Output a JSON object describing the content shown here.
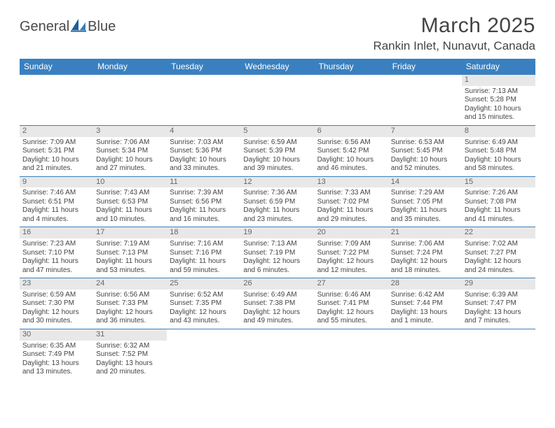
{
  "logo": {
    "word1": "General",
    "word2": "Blue"
  },
  "title": "March 2025",
  "location": "Rankin Inlet, Nunavut, Canada",
  "colors": {
    "header_bg": "#3a80c0",
    "header_text": "#ffffff",
    "border": "#3a80c0",
    "daynum_bg": "#e8e8e8",
    "text": "#444444",
    "logo_gray": "#4a4a4a",
    "logo_blue": "#2f6fa8"
  },
  "weekdays": [
    "Sunday",
    "Monday",
    "Tuesday",
    "Wednesday",
    "Thursday",
    "Friday",
    "Saturday"
  ],
  "weeks": [
    [
      {
        "day": "",
        "sunrise": "",
        "sunset": "",
        "daylight": ""
      },
      {
        "day": "",
        "sunrise": "",
        "sunset": "",
        "daylight": ""
      },
      {
        "day": "",
        "sunrise": "",
        "sunset": "",
        "daylight": ""
      },
      {
        "day": "",
        "sunrise": "",
        "sunset": "",
        "daylight": ""
      },
      {
        "day": "",
        "sunrise": "",
        "sunset": "",
        "daylight": ""
      },
      {
        "day": "",
        "sunrise": "",
        "sunset": "",
        "daylight": ""
      },
      {
        "day": "1",
        "sunrise": "Sunrise: 7:13 AM",
        "sunset": "Sunset: 5:28 PM",
        "daylight": "Daylight: 10 hours and 15 minutes."
      }
    ],
    [
      {
        "day": "2",
        "sunrise": "Sunrise: 7:09 AM",
        "sunset": "Sunset: 5:31 PM",
        "daylight": "Daylight: 10 hours and 21 minutes."
      },
      {
        "day": "3",
        "sunrise": "Sunrise: 7:06 AM",
        "sunset": "Sunset: 5:34 PM",
        "daylight": "Daylight: 10 hours and 27 minutes."
      },
      {
        "day": "4",
        "sunrise": "Sunrise: 7:03 AM",
        "sunset": "Sunset: 5:36 PM",
        "daylight": "Daylight: 10 hours and 33 minutes."
      },
      {
        "day": "5",
        "sunrise": "Sunrise: 6:59 AM",
        "sunset": "Sunset: 5:39 PM",
        "daylight": "Daylight: 10 hours and 39 minutes."
      },
      {
        "day": "6",
        "sunrise": "Sunrise: 6:56 AM",
        "sunset": "Sunset: 5:42 PM",
        "daylight": "Daylight: 10 hours and 46 minutes."
      },
      {
        "day": "7",
        "sunrise": "Sunrise: 6:53 AM",
        "sunset": "Sunset: 5:45 PM",
        "daylight": "Daylight: 10 hours and 52 minutes."
      },
      {
        "day": "8",
        "sunrise": "Sunrise: 6:49 AM",
        "sunset": "Sunset: 5:48 PM",
        "daylight": "Daylight: 10 hours and 58 minutes."
      }
    ],
    [
      {
        "day": "9",
        "sunrise": "Sunrise: 7:46 AM",
        "sunset": "Sunset: 6:51 PM",
        "daylight": "Daylight: 11 hours and 4 minutes."
      },
      {
        "day": "10",
        "sunrise": "Sunrise: 7:43 AM",
        "sunset": "Sunset: 6:53 PM",
        "daylight": "Daylight: 11 hours and 10 minutes."
      },
      {
        "day": "11",
        "sunrise": "Sunrise: 7:39 AM",
        "sunset": "Sunset: 6:56 PM",
        "daylight": "Daylight: 11 hours and 16 minutes."
      },
      {
        "day": "12",
        "sunrise": "Sunrise: 7:36 AM",
        "sunset": "Sunset: 6:59 PM",
        "daylight": "Daylight: 11 hours and 23 minutes."
      },
      {
        "day": "13",
        "sunrise": "Sunrise: 7:33 AM",
        "sunset": "Sunset: 7:02 PM",
        "daylight": "Daylight: 11 hours and 29 minutes."
      },
      {
        "day": "14",
        "sunrise": "Sunrise: 7:29 AM",
        "sunset": "Sunset: 7:05 PM",
        "daylight": "Daylight: 11 hours and 35 minutes."
      },
      {
        "day": "15",
        "sunrise": "Sunrise: 7:26 AM",
        "sunset": "Sunset: 7:08 PM",
        "daylight": "Daylight: 11 hours and 41 minutes."
      }
    ],
    [
      {
        "day": "16",
        "sunrise": "Sunrise: 7:23 AM",
        "sunset": "Sunset: 7:10 PM",
        "daylight": "Daylight: 11 hours and 47 minutes."
      },
      {
        "day": "17",
        "sunrise": "Sunrise: 7:19 AM",
        "sunset": "Sunset: 7:13 PM",
        "daylight": "Daylight: 11 hours and 53 minutes."
      },
      {
        "day": "18",
        "sunrise": "Sunrise: 7:16 AM",
        "sunset": "Sunset: 7:16 PM",
        "daylight": "Daylight: 11 hours and 59 minutes."
      },
      {
        "day": "19",
        "sunrise": "Sunrise: 7:13 AM",
        "sunset": "Sunset: 7:19 PM",
        "daylight": "Daylight: 12 hours and 6 minutes."
      },
      {
        "day": "20",
        "sunrise": "Sunrise: 7:09 AM",
        "sunset": "Sunset: 7:22 PM",
        "daylight": "Daylight: 12 hours and 12 minutes."
      },
      {
        "day": "21",
        "sunrise": "Sunrise: 7:06 AM",
        "sunset": "Sunset: 7:24 PM",
        "daylight": "Daylight: 12 hours and 18 minutes."
      },
      {
        "day": "22",
        "sunrise": "Sunrise: 7:02 AM",
        "sunset": "Sunset: 7:27 PM",
        "daylight": "Daylight: 12 hours and 24 minutes."
      }
    ],
    [
      {
        "day": "23",
        "sunrise": "Sunrise: 6:59 AM",
        "sunset": "Sunset: 7:30 PM",
        "daylight": "Daylight: 12 hours and 30 minutes."
      },
      {
        "day": "24",
        "sunrise": "Sunrise: 6:56 AM",
        "sunset": "Sunset: 7:33 PM",
        "daylight": "Daylight: 12 hours and 36 minutes."
      },
      {
        "day": "25",
        "sunrise": "Sunrise: 6:52 AM",
        "sunset": "Sunset: 7:35 PM",
        "daylight": "Daylight: 12 hours and 43 minutes."
      },
      {
        "day": "26",
        "sunrise": "Sunrise: 6:49 AM",
        "sunset": "Sunset: 7:38 PM",
        "daylight": "Daylight: 12 hours and 49 minutes."
      },
      {
        "day": "27",
        "sunrise": "Sunrise: 6:46 AM",
        "sunset": "Sunset: 7:41 PM",
        "daylight": "Daylight: 12 hours and 55 minutes."
      },
      {
        "day": "28",
        "sunrise": "Sunrise: 6:42 AM",
        "sunset": "Sunset: 7:44 PM",
        "daylight": "Daylight: 13 hours and 1 minute."
      },
      {
        "day": "29",
        "sunrise": "Sunrise: 6:39 AM",
        "sunset": "Sunset: 7:47 PM",
        "daylight": "Daylight: 13 hours and 7 minutes."
      }
    ],
    [
      {
        "day": "30",
        "sunrise": "Sunrise: 6:35 AM",
        "sunset": "Sunset: 7:49 PM",
        "daylight": "Daylight: 13 hours and 13 minutes."
      },
      {
        "day": "31",
        "sunrise": "Sunrise: 6:32 AM",
        "sunset": "Sunset: 7:52 PM",
        "daylight": "Daylight: 13 hours and 20 minutes."
      },
      {
        "day": "",
        "sunrise": "",
        "sunset": "",
        "daylight": ""
      },
      {
        "day": "",
        "sunrise": "",
        "sunset": "",
        "daylight": ""
      },
      {
        "day": "",
        "sunrise": "",
        "sunset": "",
        "daylight": ""
      },
      {
        "day": "",
        "sunrise": "",
        "sunset": "",
        "daylight": ""
      },
      {
        "day": "",
        "sunrise": "",
        "sunset": "",
        "daylight": ""
      }
    ]
  ]
}
